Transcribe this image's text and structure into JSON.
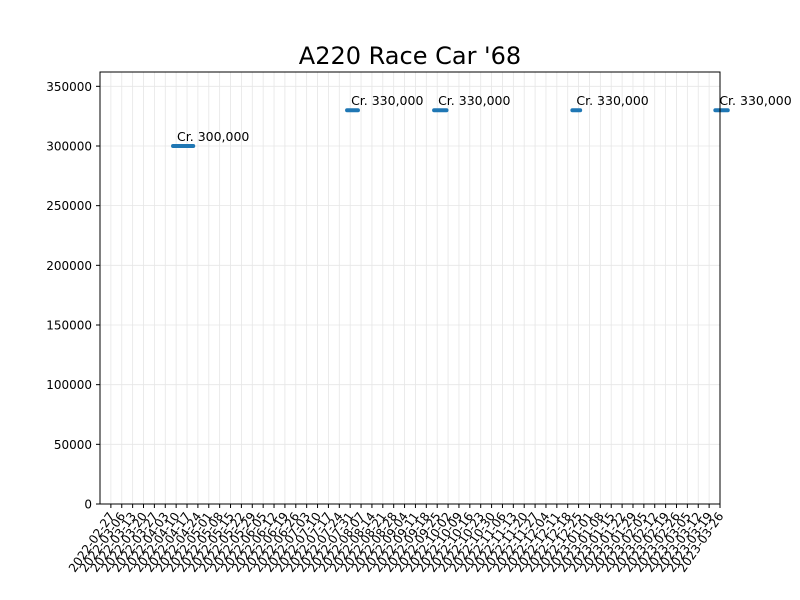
{
  "chart_data": {
    "type": "scatter",
    "title": "A220 Race Car '68",
    "xlabel": "",
    "ylabel": "",
    "ylim": [
      0,
      362000
    ],
    "xlim": [
      "2022-02-20",
      "2023-03-26"
    ],
    "x_tick_labels": [
      "2022-02-27",
      "2022-03-06",
      "2022-03-13",
      "2022-03-20",
      "2022-03-27",
      "2022-04-03",
      "2022-04-10",
      "2022-04-17",
      "2022-04-24",
      "2022-05-01",
      "2022-05-08",
      "2022-05-15",
      "2022-05-22",
      "2022-05-29",
      "2022-06-05",
      "2022-06-12",
      "2022-06-19",
      "2022-06-26",
      "2022-07-03",
      "2022-07-10",
      "2022-07-17",
      "2022-07-24",
      "2022-07-31",
      "2022-08-07",
      "2022-08-14",
      "2022-08-21",
      "2022-08-28",
      "2022-09-04",
      "2022-09-11",
      "2022-09-18",
      "2022-09-25",
      "2022-10-02",
      "2022-10-09",
      "2022-10-16",
      "2022-10-23",
      "2022-10-30",
      "2022-11-06",
      "2022-11-13",
      "2022-11-20",
      "2022-11-27",
      "2022-12-04",
      "2022-12-11",
      "2022-12-18",
      "2022-12-25",
      "2023-01-01",
      "2023-01-08",
      "2023-01-15",
      "2023-01-22",
      "2023-01-29",
      "2023-02-05",
      "2023-02-12",
      "2023-02-19",
      "2023-02-26",
      "2023-03-05",
      "2023-03-12",
      "2023-03-19",
      "2023-03-26"
    ],
    "y_ticks": [
      0,
      50000,
      100000,
      150000,
      200000,
      250000,
      300000,
      350000
    ],
    "y_tick_labels": [
      "0",
      "50000",
      "100000",
      "150000",
      "200000",
      "250000",
      "300000",
      "350000"
    ],
    "grid": true,
    "series": [
      {
        "color": "#1f77b4",
        "segments": [
          {
            "start": "2022-04-08",
            "end": "2022-04-21",
            "value": 300000,
            "label": "Cr. 300,000"
          },
          {
            "start": "2022-07-29",
            "end": "2022-08-05",
            "value": 330000,
            "label": "Cr. 330,000"
          },
          {
            "start": "2022-09-23",
            "end": "2022-10-01",
            "value": 330000,
            "label": "Cr. 330,000"
          },
          {
            "start": "2022-12-21",
            "end": "2022-12-26",
            "value": 330000,
            "label": "Cr. 330,000"
          },
          {
            "start": "2023-03-23",
            "end": "2023-03-31",
            "value": 330000,
            "label": "Cr. 330,000"
          }
        ]
      }
    ]
  }
}
